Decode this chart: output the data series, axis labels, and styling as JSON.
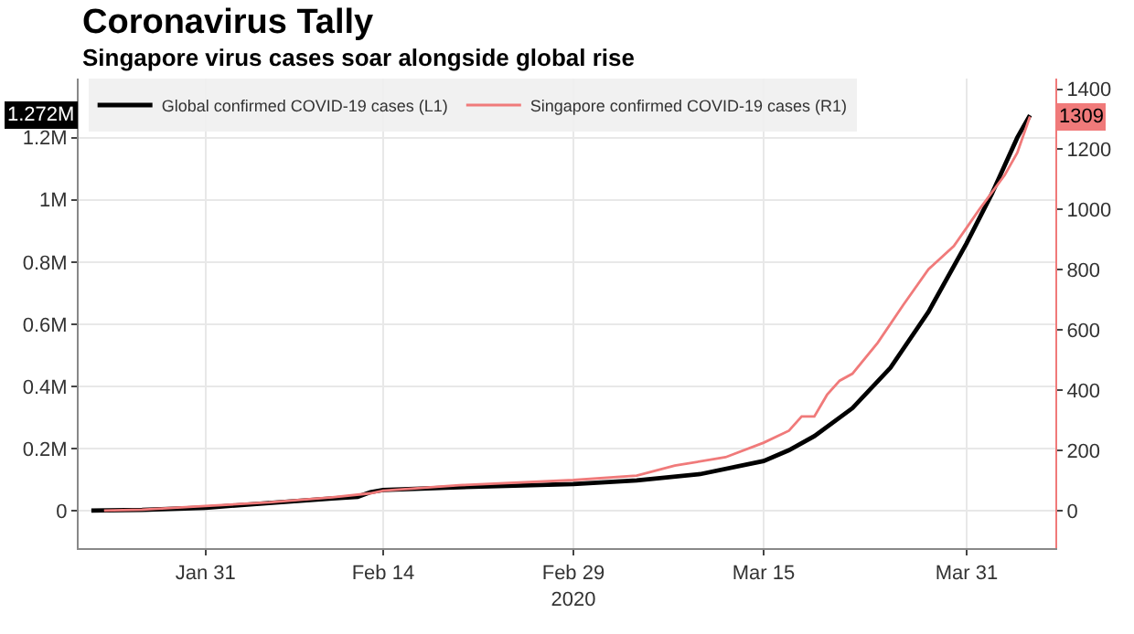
{
  "chart_data": {
    "type": "line",
    "title": "Coronavirus Tally",
    "subtitle": "Singapore virus cases soar alongside global rise",
    "series": [
      {
        "name": "Global confirmed COVID-19 cases (L1)",
        "color": "#000000",
        "x": [
          "2020-01-22",
          "2020-01-26",
          "2020-01-31",
          "2020-02-05",
          "2020-02-10",
          "2020-02-12",
          "2020-02-13",
          "2020-02-14",
          "2020-02-20",
          "2020-02-29",
          "2020-03-05",
          "2020-03-10",
          "2020-03-15",
          "2020-03-17",
          "2020-03-19",
          "2020-03-22",
          "2020-03-25",
          "2020-03-28",
          "2020-03-31",
          "2020-04-02",
          "2020-04-04",
          "2020-04-05"
        ],
        "values": [
          1000,
          3000,
          10000,
          25000,
          40000,
          45000,
          60000,
          67000,
          76000,
          86000,
          98000,
          118000,
          160000,
          195000,
          240000,
          330000,
          460000,
          640000,
          860000,
          1020000,
          1200000,
          1272000
        ]
      },
      {
        "name": "Singapore confirmed COVID-19 cases (R1)",
        "color": "#f07a7a",
        "axis": "y2",
        "x": [
          "2020-01-23",
          "2020-01-26",
          "2020-01-31",
          "2020-02-05",
          "2020-02-10",
          "2020-02-13",
          "2020-02-14",
          "2020-02-20",
          "2020-02-29",
          "2020-03-05",
          "2020-03-08",
          "2020-03-12",
          "2020-03-15",
          "2020-03-17",
          "2020-03-18",
          "2020-03-19",
          "2020-03-20",
          "2020-03-21",
          "2020-03-22",
          "2020-03-24",
          "2020-03-26",
          "2020-03-28",
          "2020-03-30",
          "2020-04-01",
          "2020-04-03",
          "2020-04-04",
          "2020-04-05"
        ],
        "values": [
          1,
          4,
          16,
          28,
          45,
          58,
          67,
          85,
          102,
          117,
          150,
          178,
          226,
          266,
          313,
          313,
          385,
          432,
          455,
          558,
          683,
          802,
          879,
          1000,
          1114,
          1189,
          1309
        ]
      }
    ],
    "xlim": [
      "2020-01-21",
      "2020-04-07"
    ],
    "xticks": [
      {
        "value": "2020-01-31",
        "label": "Jan 31"
      },
      {
        "value": "2020-02-14",
        "label": "Feb 14"
      },
      {
        "value": "2020-02-29",
        "label": "Feb 29\n2020"
      },
      {
        "value": "2020-03-15",
        "label": "Mar 15"
      },
      {
        "value": "2020-03-31",
        "label": "Mar 31"
      }
    ],
    "ylim": [
      -120000,
      1390000
    ],
    "yticks": [
      0,
      {
        "value": 200000,
        "label": "0.2M"
      },
      {
        "value": 400000,
        "label": "0.4M"
      },
      {
        "value": 600000,
        "label": "0.6M"
      },
      {
        "value": 800000,
        "label": "0.8M"
      },
      {
        "value": 1000000,
        "label": "1M"
      },
      {
        "value": 1200000,
        "label": "1.2M"
      }
    ],
    "y2lim": [
      -124,
      1435
    ],
    "y2ticks": [
      0,
      200,
      400,
      600,
      800,
      1000,
      1200,
      1400
    ],
    "annotations": [
      "1.272M",
      "1309"
    ],
    "grid": true,
    "legend": "top left",
    "marker": "none",
    "line_style": "solid"
  }
}
